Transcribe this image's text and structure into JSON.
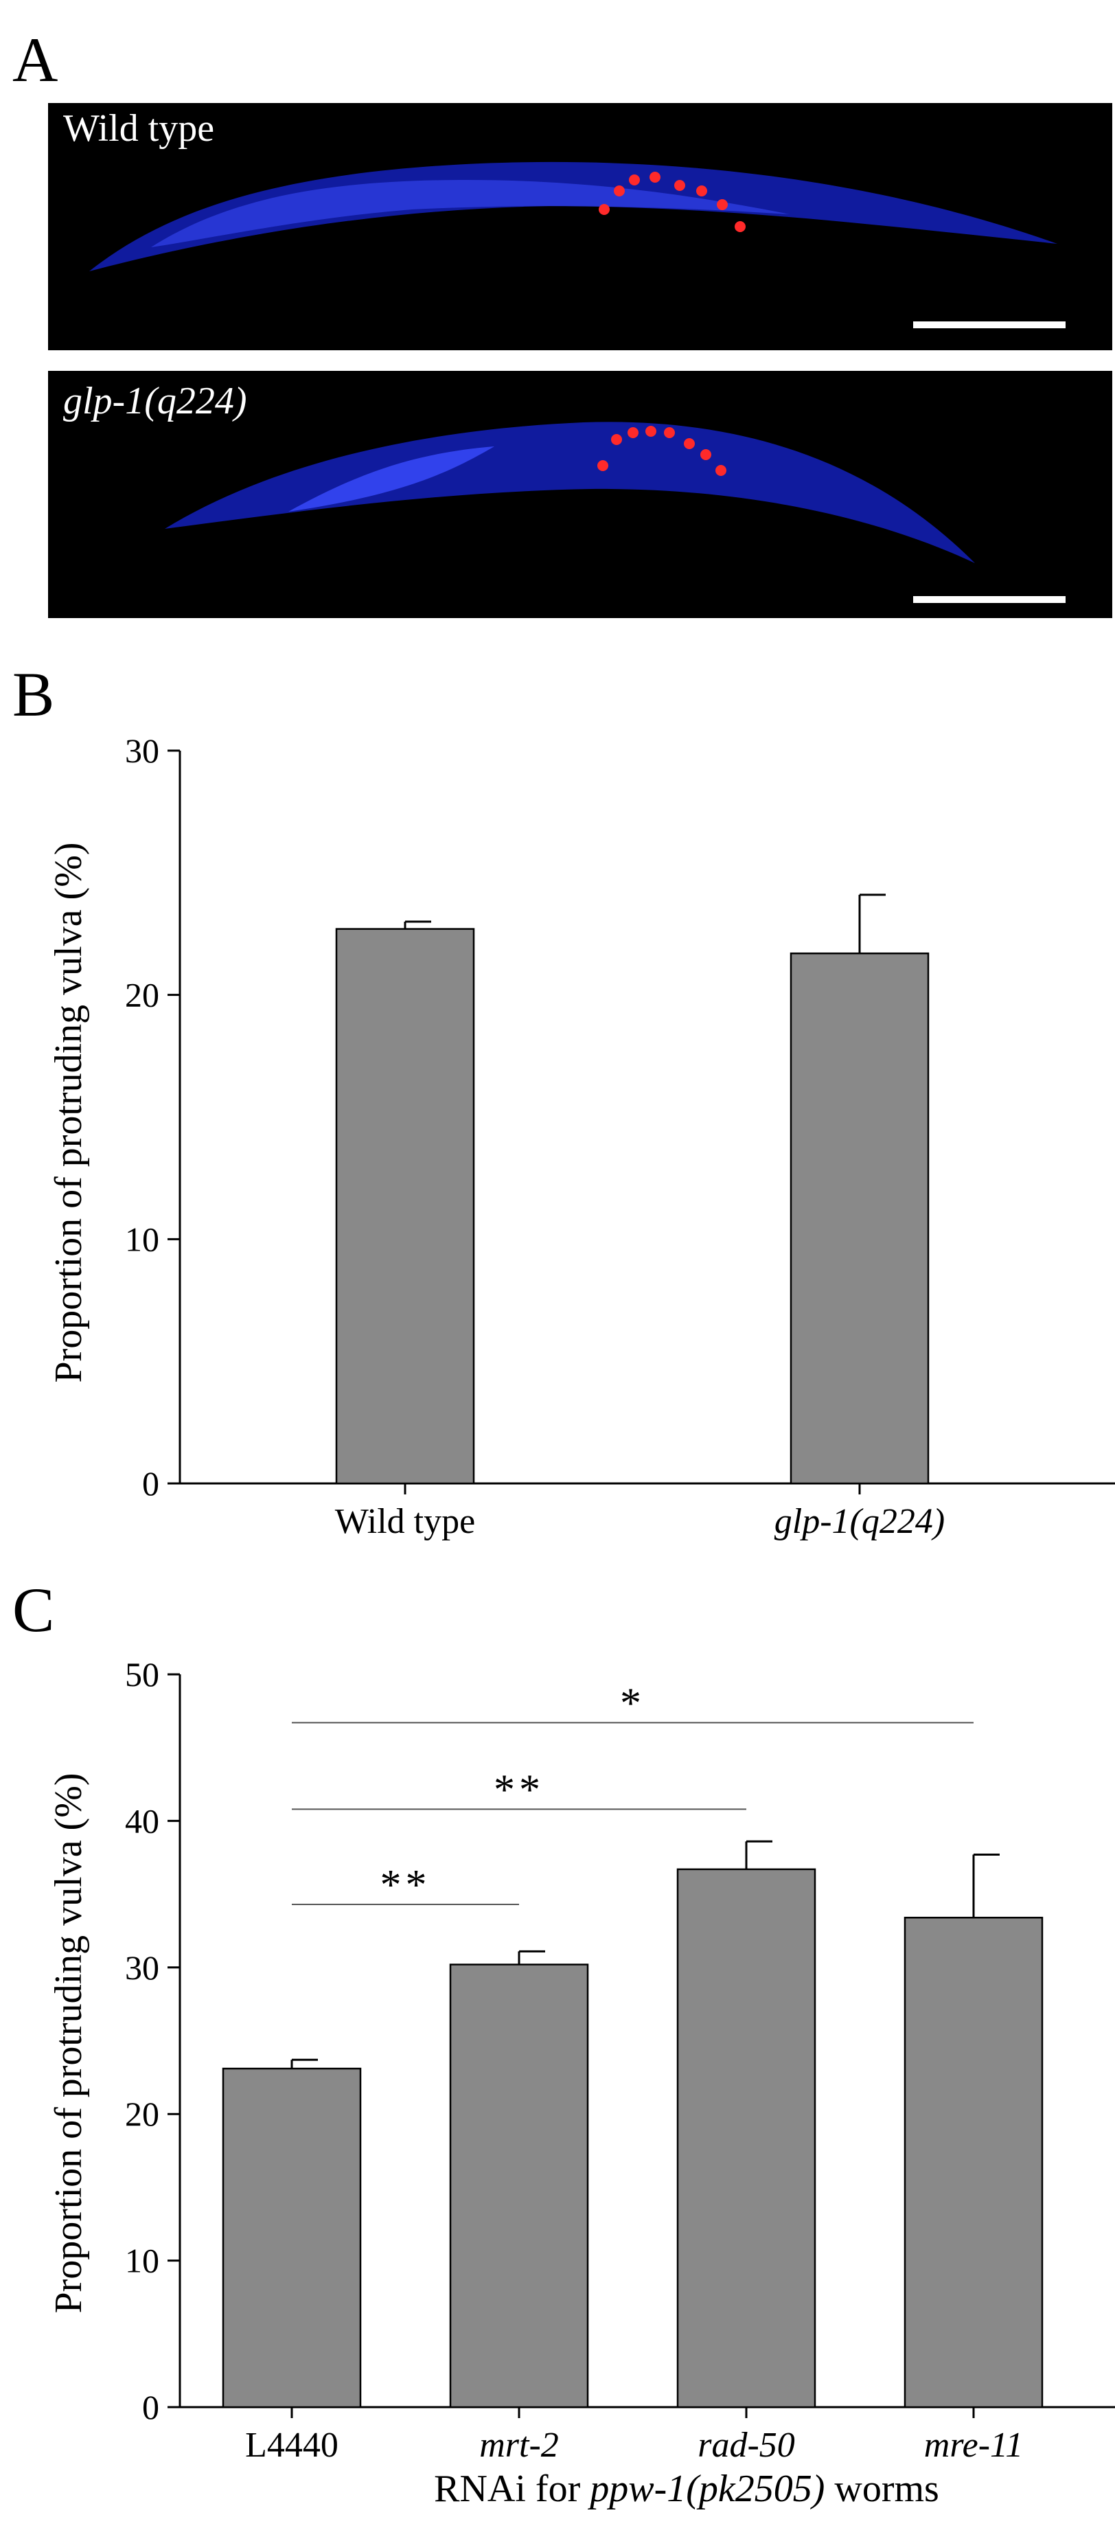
{
  "panels": {
    "a": {
      "letter": "A"
    },
    "b": {
      "letter": "B"
    },
    "c": {
      "letter": "C"
    }
  },
  "micrographs": [
    {
      "label": "Wild type",
      "label_italic": false
    },
    {
      "label": "glp-1(q224)",
      "label_italic": true
    }
  ],
  "colors": {
    "bar_fill": "#898989",
    "axis": "#000000",
    "micrograph_bg": "#000000",
    "nuclei_stain": "#1a2cff",
    "marker_dots": "#ff2a2a",
    "scale_bar": "#ffffff"
  },
  "chart_data": [
    {
      "id": "panel-b",
      "type": "bar",
      "title": "",
      "xlabel": "",
      "ylabel": "Proportion of protruding vulva (%)",
      "ylim": [
        0,
        30
      ],
      "yticks": [
        0,
        10,
        20,
        30
      ],
      "categories": [
        "Wild type",
        "glp-1(q224)"
      ],
      "italic_categories": [
        false,
        true
      ],
      "values": [
        22.7,
        21.7
      ],
      "errors": [
        0.3,
        2.4
      ],
      "significance": []
    },
    {
      "id": "panel-c",
      "type": "bar",
      "title": "",
      "xlabel_parts": [
        "RNAi for ",
        "ppw-1(pk2505)",
        " worms"
      ],
      "ylabel": "Proportion of protruding vulva (%)",
      "ylim": [
        0,
        50
      ],
      "yticks": [
        0,
        10,
        20,
        30,
        40,
        50
      ],
      "categories": [
        "L4440",
        "mrt-2",
        "rad-50",
        "mre-11"
      ],
      "italic_categories": [
        false,
        true,
        true,
        true
      ],
      "values": [
        23.1,
        30.2,
        36.7,
        33.4
      ],
      "errors": [
        0.6,
        0.9,
        1.9,
        4.3
      ],
      "significance": [
        {
          "from": 0,
          "to": 1,
          "label": "**",
          "y": 34.3
        },
        {
          "from": 0,
          "to": 2,
          "label": "**",
          "y": 40.8
        },
        {
          "from": 0,
          "to": 3,
          "label": "*",
          "y": 46.7
        }
      ]
    }
  ]
}
